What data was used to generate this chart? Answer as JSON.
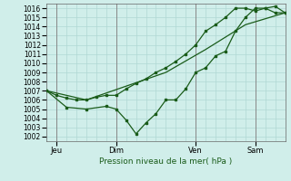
{
  "title": "Pression niveau de la mer( hPa )",
  "xlim": [
    0,
    72
  ],
  "ylim": [
    1001.5,
    1016.5
  ],
  "yticks": [
    1002,
    1003,
    1004,
    1005,
    1006,
    1007,
    1008,
    1009,
    1010,
    1011,
    1012,
    1013,
    1014,
    1015,
    1016
  ],
  "xtick_labels": [
    "Jeu",
    "Dim",
    "Ven",
    "Sam"
  ],
  "xtick_positions": [
    3,
    21,
    45,
    63
  ],
  "bg_color": "#d0eeea",
  "grid_color": "#b0d8d4",
  "line_color": "#1a5c1a",
  "vline_color": "#888888",
  "line1_x": [
    0,
    3,
    6,
    9,
    12,
    15,
    18,
    21,
    24,
    27,
    30,
    33,
    36,
    39,
    42,
    45,
    48,
    51,
    54,
    57,
    60,
    63,
    66,
    69,
    72
  ],
  "line1_y": [
    1007.0,
    1006.5,
    1006.2,
    1006.0,
    1006.0,
    1006.3,
    1006.5,
    1006.5,
    1007.2,
    1007.8,
    1008.3,
    1009.0,
    1009.5,
    1010.2,
    1011.0,
    1012.0,
    1013.5,
    1014.2,
    1015.0,
    1016.0,
    1016.0,
    1015.7,
    1016.0,
    1016.2,
    1015.5
  ],
  "line2_x": [
    0,
    6,
    12,
    18,
    21,
    24,
    27,
    30,
    33,
    36,
    39,
    42,
    45,
    48,
    51,
    54,
    57,
    60,
    63,
    66,
    69,
    72
  ],
  "line2_y": [
    1007.0,
    1005.2,
    1005.0,
    1005.3,
    1005.0,
    1003.8,
    1002.3,
    1003.5,
    1004.5,
    1006.0,
    1006.0,
    1007.2,
    1009.0,
    1009.5,
    1010.8,
    1011.3,
    1013.5,
    1015.0,
    1016.0,
    1016.0,
    1015.5,
    1015.5
  ],
  "line3_x": [
    0,
    12,
    24,
    36,
    48,
    60,
    72
  ],
  "line3_y": [
    1007.0,
    1006.0,
    1007.5,
    1009.0,
    1011.5,
    1014.2,
    1015.5
  ],
  "title_fontsize": 6.5,
  "tick_fontsize": 5.5,
  "xlabel_fontsize": 6.0
}
